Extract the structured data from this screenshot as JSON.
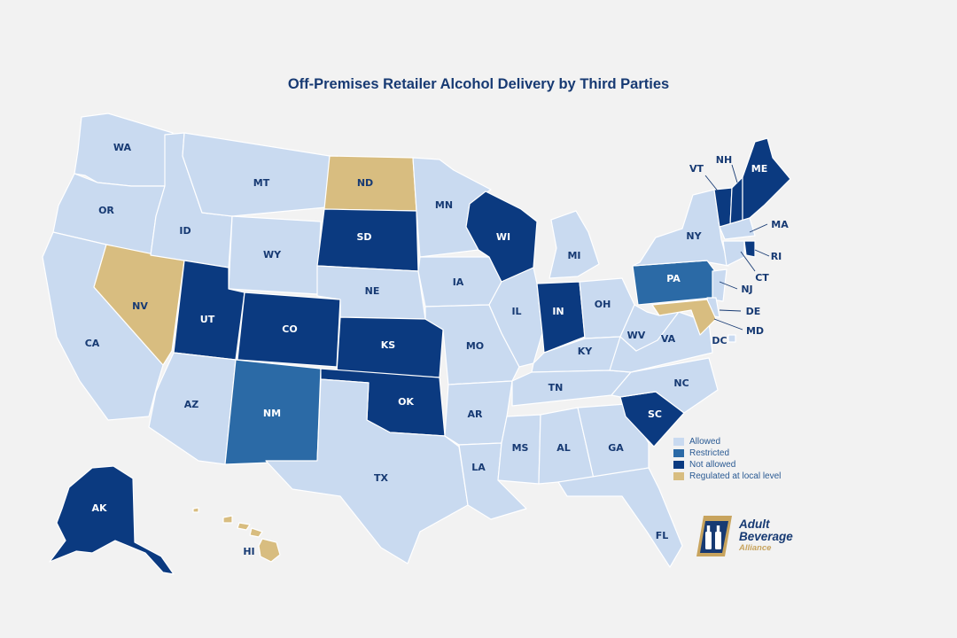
{
  "title": "Off-Premises Retailer Alcohol Delivery by Third Parties",
  "colors": {
    "allowed": "#c9daf0",
    "restricted": "#2b6aa6",
    "not_allowed": "#0b3a80",
    "local": "#d8bd80",
    "title": "#173a73",
    "background": "#f2f2f2"
  },
  "legend": [
    {
      "key": "allowed",
      "label": "Allowed"
    },
    {
      "key": "restricted",
      "label": "Restricted"
    },
    {
      "key": "not_allowed",
      "label": "Not allowed"
    },
    {
      "key": "local",
      "label": "Regulated at local level"
    }
  ],
  "states": {
    "WA": "allowed",
    "OR": "allowed",
    "CA": "allowed",
    "NV": "local",
    "ID": "allowed",
    "MT": "allowed",
    "WY": "allowed",
    "UT": "not_allowed",
    "AZ": "allowed",
    "CO": "not_allowed",
    "NM": "restricted",
    "ND": "local",
    "SD": "not_allowed",
    "NE": "allowed",
    "KS": "not_allowed",
    "OK": "not_allowed",
    "TX": "allowed",
    "MN": "allowed",
    "IA": "allowed",
    "MO": "allowed",
    "AR": "allowed",
    "LA": "allowed",
    "WI": "not_allowed",
    "IL": "allowed",
    "MS": "allowed",
    "MI": "allowed",
    "IN": "not_allowed",
    "OH": "allowed",
    "KY": "allowed",
    "TN": "allowed",
    "AL": "allowed",
    "GA": "allowed",
    "FL": "allowed",
    "SC": "not_allowed",
    "NC": "allowed",
    "VA": "allowed",
    "WV": "allowed",
    "PA": "restricted",
    "NY": "allowed",
    "VT": "not_allowed",
    "NH": "not_allowed",
    "ME": "not_allowed",
    "MA": "allowed",
    "RI": "not_allowed",
    "CT": "allowed",
    "NJ": "allowed",
    "DE": "allowed",
    "MD": "local",
    "DC": "allowed",
    "AK": "not_allowed",
    "HI": "local"
  },
  "labels": [
    "WA",
    "OR",
    "CA",
    "NV",
    "ID",
    "MT",
    "WY",
    "UT",
    "AZ",
    "CO",
    "NM",
    "ND",
    "SD",
    "NE",
    "KS",
    "OK",
    "TX",
    "MN",
    "IA",
    "MO",
    "AR",
    "LA",
    "WI",
    "IL",
    "MS",
    "MI",
    "IN",
    "OH",
    "KY",
    "TN",
    "AL",
    "GA",
    "FL",
    "SC",
    "NC",
    "VA",
    "WV",
    "PA",
    "NY",
    "VT",
    "NH",
    "ME",
    "MA",
    "RI",
    "CT",
    "NJ",
    "DE",
    "MD",
    "DC",
    "AK",
    "HI"
  ],
  "brand": {
    "name_line1": "Adult",
    "name_line2": "Beverage",
    "sub": "Alliance"
  }
}
